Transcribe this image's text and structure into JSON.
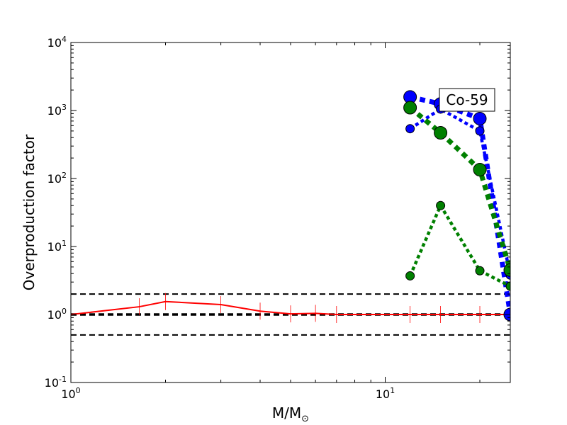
{
  "chart_data": {
    "type": "line",
    "title": "",
    "xlabel": "M/M",
    "xlabel_sub": "⊙",
    "ylabel": "Overproduction factor",
    "xscale": "log",
    "yscale": "log",
    "xlim": [
      1,
      25
    ],
    "ylim": [
      0.1,
      10000
    ],
    "x_ticks": [
      {
        "value": 1,
        "base": "10",
        "exp": "0"
      },
      {
        "value": 10,
        "base": "10",
        "exp": "1"
      }
    ],
    "y_ticks": [
      {
        "value": 0.1,
        "base": "10",
        "exp": "-1"
      },
      {
        "value": 1,
        "base": "10",
        "exp": "0"
      },
      {
        "value": 10,
        "base": "10",
        "exp": "1"
      },
      {
        "value": 100,
        "base": "10",
        "exp": "2"
      },
      {
        "value": 1000,
        "base": "10",
        "exp": "3"
      },
      {
        "value": 10000,
        "base": "10",
        "exp": "4"
      }
    ],
    "annotation": "Co-59",
    "reference_lines": [
      {
        "y": 2,
        "color": "#000000",
        "style": "dashed",
        "weight": "thin"
      },
      {
        "y": 1,
        "color": "#000000",
        "style": "dashed",
        "weight": "thick"
      },
      {
        "y": 0.5,
        "color": "#000000",
        "style": "dashed",
        "weight": "thin"
      }
    ],
    "series": [
      {
        "color": "#ff0000",
        "style": "solid",
        "weight": "thin",
        "marker": "errorbar",
        "x": [
          1,
          1.65,
          2,
          3,
          4,
          5,
          6,
          7,
          12,
          15,
          20,
          25
        ],
        "y": [
          1.0,
          1.3,
          1.55,
          1.4,
          1.12,
          1.02,
          1.04,
          1.0,
          1.0,
          1.0,
          1.0,
          1.0
        ]
      },
      {
        "color": "#0000ff",
        "style": "dotted",
        "weight": "thick",
        "marker": "circle",
        "x": [
          12,
          15,
          20,
          25
        ],
        "y": [
          1580,
          1250,
          760,
          1.0
        ]
      },
      {
        "color": "#0000ff",
        "style": "dotted",
        "weight": "medium",
        "marker": "circle",
        "x": [
          12,
          15,
          20,
          25
        ],
        "y": [
          540,
          1050,
          500,
          3.8
        ]
      },
      {
        "color": "#008000",
        "style": "dotted",
        "weight": "thick",
        "marker": "circle",
        "x": [
          12,
          15,
          20,
          25
        ],
        "y": [
          1100,
          470,
          135,
          4.5
        ]
      },
      {
        "color": "#008000",
        "style": "dotted",
        "weight": "medium",
        "marker": "circle",
        "x": [
          12,
          15,
          20,
          25
        ],
        "y": [
          3.7,
          40,
          4.4,
          2.6
        ]
      }
    ]
  }
}
